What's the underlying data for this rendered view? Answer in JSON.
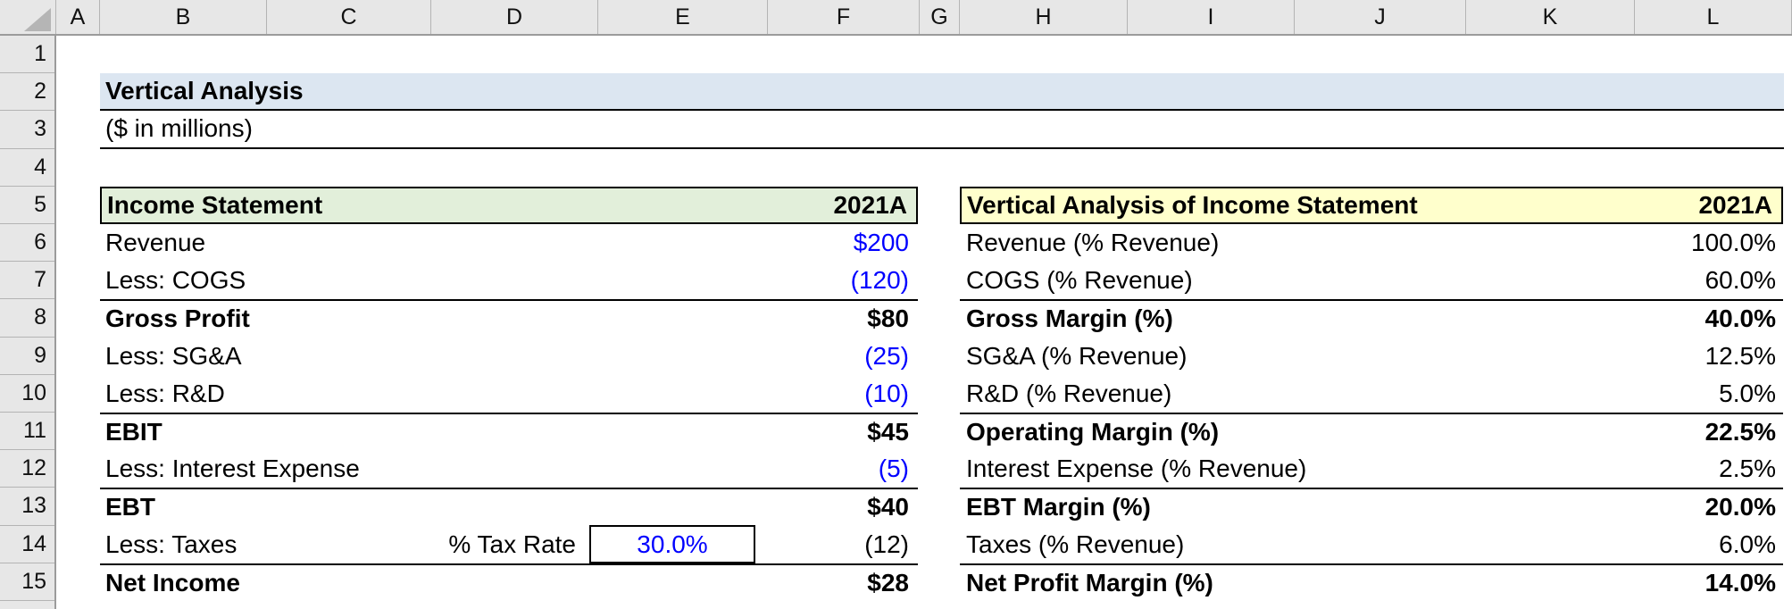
{
  "colors": {
    "title_band": "#DCE6F1",
    "income_statement_header": "#E2EFDA",
    "vertical_analysis_header": "#FFFFCC",
    "input_value_blue": "#0000FF",
    "grid_header_gray": "#E7E7E7"
  },
  "grid": {
    "columns": [
      "A",
      "B",
      "C",
      "D",
      "E",
      "F",
      "G",
      "H",
      "I",
      "J",
      "K",
      "L"
    ],
    "rows": [
      "1",
      "2",
      "3",
      "4",
      "5",
      "6",
      "7",
      "8",
      "9",
      "10",
      "11",
      "12",
      "13",
      "14",
      "15"
    ]
  },
  "title": {
    "text": "Vertical Analysis",
    "subtitle": "($ in millions)"
  },
  "income_statement": {
    "header": "Income Statement",
    "period": "2021A",
    "rows": [
      {
        "label": "Revenue",
        "value": "$200"
      },
      {
        "label": "Less: COGS",
        "value": "(120)"
      },
      {
        "label": "Gross Profit",
        "value": "$80"
      },
      {
        "label": "Less: SG&A",
        "value": "(25)"
      },
      {
        "label": "Less: R&D",
        "value": "(10)"
      },
      {
        "label": "EBIT",
        "value": "$45"
      },
      {
        "label": "Less: Interest Expense",
        "value": "(5)"
      },
      {
        "label": "EBT",
        "value": "$40"
      },
      {
        "label": "Less: Taxes",
        "value": "(12)"
      },
      {
        "label": "Net Income",
        "value": "$28"
      }
    ],
    "tax_label": "% Tax Rate",
    "tax_rate": "30.0%"
  },
  "vertical_analysis": {
    "header": "Vertical Analysis of Income Statement",
    "period": "2021A",
    "rows": [
      {
        "label": "Revenue (% Revenue)",
        "value": "100.0%"
      },
      {
        "label": "COGS (% Revenue)",
        "value": "60.0%"
      },
      {
        "label": "Gross Margin (%)",
        "value": "40.0%"
      },
      {
        "label": "SG&A (% Revenue)",
        "value": "12.5%"
      },
      {
        "label": "R&D (% Revenue)",
        "value": "5.0%"
      },
      {
        "label": "Operating Margin (%)",
        "value": "22.5%"
      },
      {
        "label": "Interest Expense (% Revenue)",
        "value": "2.5%"
      },
      {
        "label": "EBT Margin (%)",
        "value": "20.0%"
      },
      {
        "label": "Taxes (% Revenue)",
        "value": "6.0%"
      },
      {
        "label": "Net Profit Margin (%)",
        "value": "14.0%"
      }
    ]
  }
}
